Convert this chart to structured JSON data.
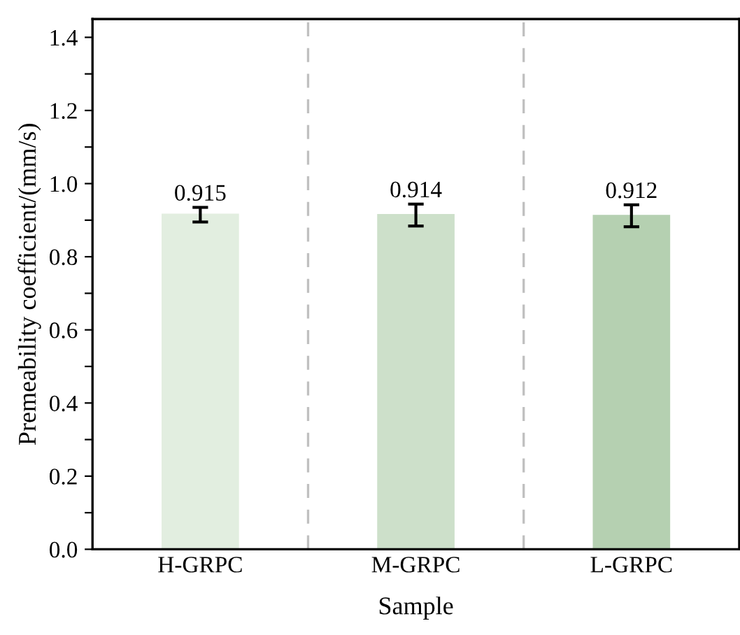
{
  "chart_data": {
    "type": "bar",
    "xlabel": "Sample",
    "ylabel": "Premeability coefficient/(mm/s)",
    "categories": [
      "H-GRPC",
      "M-GRPC",
      "L-GRPC"
    ],
    "values": [
      0.915,
      0.914,
      0.912
    ],
    "errors": [
      0.02,
      0.03,
      0.03
    ],
    "colors": [
      "#e2eee0",
      "#cde0ca",
      "#b5d0b1"
    ],
    "data_labels": true,
    "ylim": [
      0,
      1.45
    ],
    "yticks": [
      {
        "value": 0,
        "label": "0.0"
      },
      {
        "value": 0.1,
        "label": null
      },
      0.2,
      {
        "value": 0.3,
        "label": null
      },
      0.4,
      {
        "value": 0.5,
        "label": null
      },
      0.6,
      {
        "value": 0.7,
        "label": null
      },
      0.8,
      {
        "value": 0.9,
        "label": null
      },
      {
        "value": 1,
        "label": "1.0"
      },
      {
        "value": 1.1,
        "label": null
      },
      1.2,
      {
        "value": 1.3,
        "label": null
      },
      1.4
    ],
    "grid": false
  }
}
